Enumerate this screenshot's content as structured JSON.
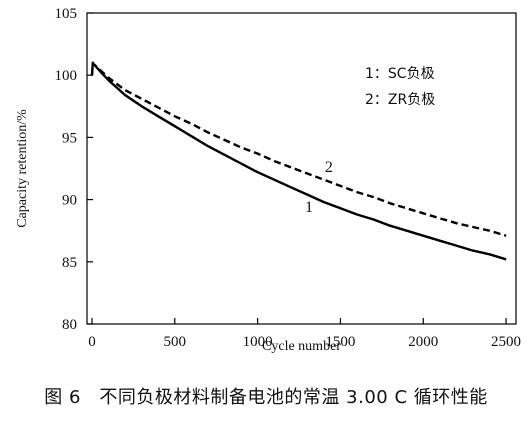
{
  "chart_data": {
    "type": "line",
    "title": "",
    "xlabel": "Cycle number",
    "ylabel": "Capacity retention/%",
    "xlim": [
      -30,
      2560
    ],
    "ylim": [
      80,
      105
    ],
    "xticks": [
      0,
      500,
      1000,
      1500,
      2000,
      2500
    ],
    "yticks": [
      80,
      85,
      90,
      95,
      100,
      105
    ],
    "legend": [
      "1：SC负极",
      "2：ZR负极"
    ],
    "legend_position": "top-right",
    "series": [
      {
        "name": "1",
        "style": "solid",
        "color": "#000000",
        "x": [
          0,
          5,
          10,
          50,
          100,
          150,
          200,
          300,
          400,
          500,
          600,
          700,
          800,
          900,
          1000,
          1100,
          1200,
          1300,
          1400,
          1500,
          1600,
          1700,
          1800,
          1900,
          2000,
          2100,
          2200,
          2300,
          2400,
          2500
        ],
        "y": [
          100,
          101,
          100.9,
          100.3,
          99.6,
          99.0,
          98.4,
          97.5,
          96.7,
          95.9,
          95.1,
          94.3,
          93.6,
          92.9,
          92.2,
          91.6,
          91.0,
          90.4,
          89.8,
          89.3,
          88.8,
          88.4,
          87.9,
          87.5,
          87.1,
          86.7,
          86.3,
          85.9,
          85.6,
          85.2
        ]
      },
      {
        "name": "2",
        "style": "dashed",
        "color": "#000000",
        "x": [
          0,
          5,
          10,
          50,
          100,
          150,
          200,
          300,
          400,
          500,
          600,
          700,
          800,
          900,
          1000,
          1100,
          1200,
          1300,
          1400,
          1500,
          1600,
          1700,
          1800,
          1900,
          2000,
          2100,
          2200,
          2300,
          2400,
          2500
        ],
        "y": [
          100,
          101,
          100.9,
          100.4,
          99.8,
          99.3,
          98.8,
          98.1,
          97.4,
          96.7,
          96.1,
          95.4,
          94.8,
          94.2,
          93.7,
          93.1,
          92.6,
          92.1,
          91.6,
          91.1,
          90.6,
          90.2,
          89.7,
          89.3,
          88.9,
          88.5,
          88.1,
          87.8,
          87.5,
          87.1
        ]
      }
    ],
    "annotations": [
      {
        "text": "1",
        "x": 1310,
        "y": 89.0
      },
      {
        "text": "2",
        "x": 1430,
        "y": 92.2
      }
    ]
  },
  "caption": "图 6　不同负极材料制备电池的常温 3.00 C 循环性能"
}
